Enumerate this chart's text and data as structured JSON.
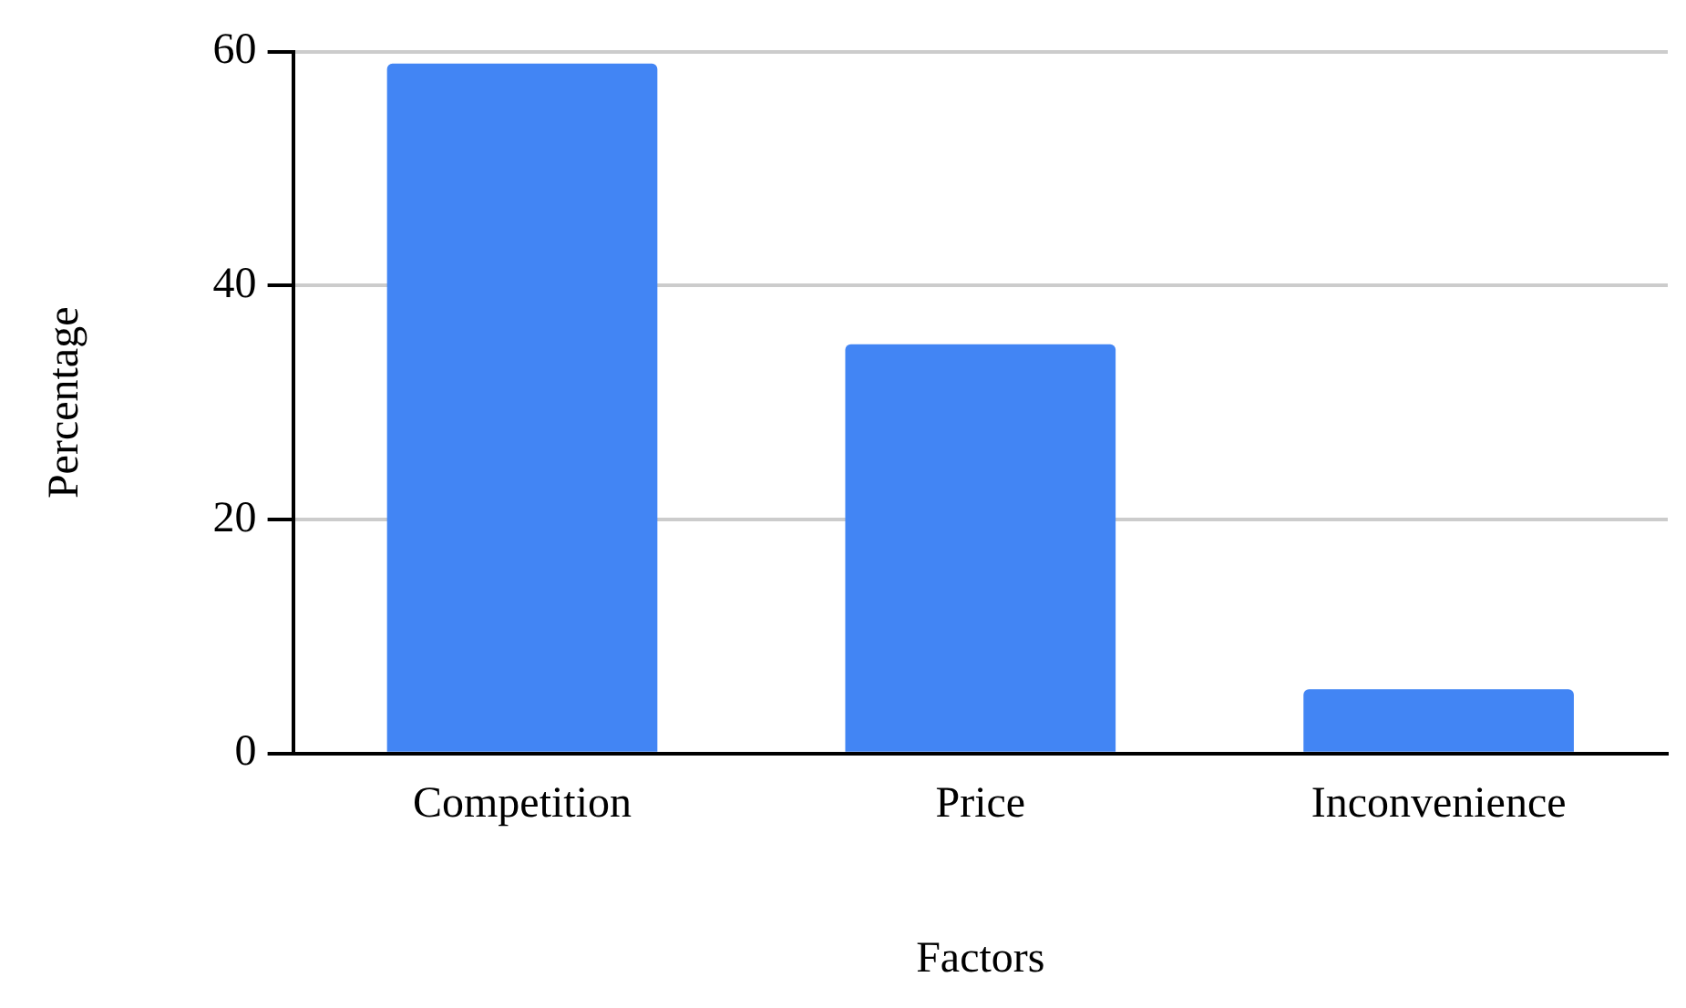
{
  "chart_data": {
    "type": "bar",
    "xlabel": "Factors",
    "ylabel": "Percentage",
    "categories": [
      "Competition",
      "Price",
      "Inconvenience"
    ],
    "values": [
      59,
      35,
      5.5
    ],
    "color": "#4285f4",
    "ylim": [
      0,
      60
    ],
    "yticks": [
      0,
      20,
      40,
      60
    ],
    "grid": "y",
    "legend": false
  }
}
